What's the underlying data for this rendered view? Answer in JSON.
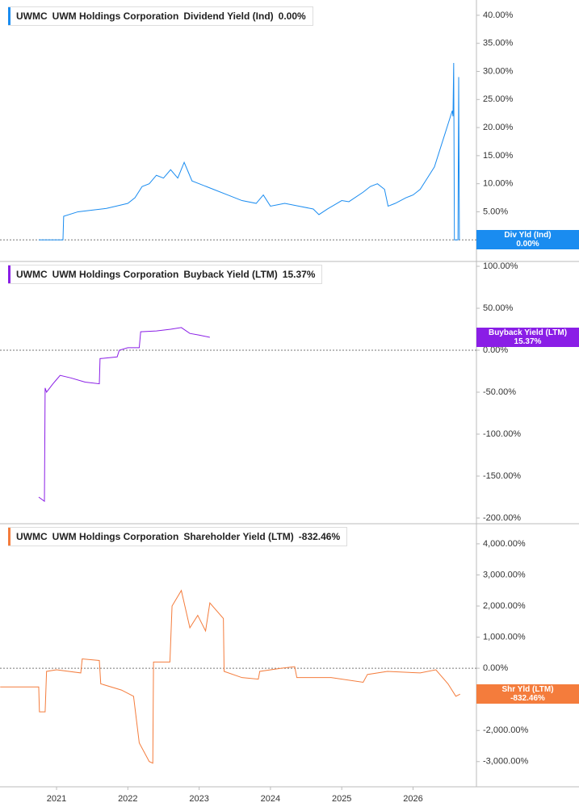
{
  "chart_data": [
    {
      "type": "line",
      "ticker": "UWMC",
      "company": "UWM Holdings Corporation",
      "tag_label": "Div Yld (Ind)",
      "last_value_label": "0.00%",
      "xlim": [
        2020.207,
        2026.889
      ],
      "ylim": [
        -3.7,
        42
      ],
      "yticks": [
        {
          "value": 0,
          "label": "0.00%"
        },
        {
          "value": 5,
          "label": "5.00%"
        },
        {
          "value": 10,
          "label": "10.00%"
        },
        {
          "value": 15,
          "label": "15.00%"
        },
        {
          "value": 20,
          "label": "20.00%"
        },
        {
          "value": 25,
          "label": "25.00%"
        },
        {
          "value": 30,
          "label": "30.00%"
        },
        {
          "value": 35,
          "label": "35.00%"
        },
        {
          "value": 40,
          "label": "40.00%"
        }
      ],
      "x": [
        2020.75,
        2021.09,
        2021.1,
        2021.3,
        2021.5,
        2021.7,
        2021.9,
        2022.0,
        2022.1,
        2022.2,
        2022.3,
        2022.4,
        2022.5,
        2022.6,
        2022.7,
        2022.79,
        2022.85,
        2022.9,
        2023.0,
        2023.2,
        2023.4,
        2023.6,
        2023.8,
        2023.9,
        2024.0,
        2024.2,
        2024.4,
        2024.6,
        2024.68,
        2024.8,
        2025.0,
        2025.1,
        2025.3,
        2025.4,
        2025.5,
        2025.6,
        2025.65,
        2025.75,
        2025.9,
        2026.0,
        2026.1,
        2026.2,
        2026.3,
        2026.4,
        2026.45,
        2026.5,
        2026.55,
        2026.56,
        2026.57,
        2026.58,
        2026.63,
        2026.64,
        2026.65
      ],
      "series": [
        {
          "name": "Dividend Yield (Ind)",
          "color": "#1a8cf0",
          "values": [
            0,
            0,
            4.2,
            5,
            5.3,
            5.6,
            6.2,
            6.5,
            7.5,
            9.5,
            10,
            11.5,
            11,
            12.5,
            11,
            13.8,
            12,
            10.5,
            10,
            9,
            8,
            7,
            6.5,
            8,
            6,
            6.5,
            6,
            5.5,
            4.5,
            5.5,
            7,
            6.8,
            8.5,
            9.5,
            10,
            9,
            6,
            6.5,
            7.5,
            8,
            9,
            11,
            13,
            17,
            19,
            21,
            23,
            22,
            31.5,
            0,
            0,
            29,
            0
          ]
        }
      ]
    },
    {
      "type": "line",
      "ticker": "UWMC",
      "company": "UWM Holdings Corporation",
      "tag_label": "Buyback Yield (LTM)",
      "last_value_label": "15.37%",
      "xlim": [
        2020.207,
        2026.889
      ],
      "ylim": [
        -205.8,
        104.8
      ],
      "yticks": [
        {
          "value": -200,
          "label": "-200.00%"
        },
        {
          "value": -150,
          "label": "-150.00%"
        },
        {
          "value": -100,
          "label": "-100.00%"
        },
        {
          "value": -50,
          "label": "-50.00%"
        },
        {
          "value": 0,
          "label": "0.00%"
        },
        {
          "value": 50,
          "label": "50.00%"
        },
        {
          "value": 100,
          "label": "100.00%"
        }
      ],
      "x": [
        2020.75,
        2020.83,
        2020.84,
        2020.86,
        2020.95,
        2021.0,
        2021.05,
        2021.2,
        2021.4,
        2021.6,
        2021.61,
        2021.85,
        2021.88,
        2022.0,
        2022.16,
        2022.18,
        2022.4,
        2022.6,
        2022.75,
        2022.87,
        2023.0,
        2023.15
      ],
      "series": [
        {
          "name": "Buyback Yield (LTM)",
          "color": "#8a1ee6",
          "values": [
            -175,
            -180,
            -45,
            -50,
            -40,
            -35,
            -30,
            -33,
            -38,
            -40,
            -10,
            -8,
            0,
            3,
            3,
            22,
            23,
            25,
            27,
            20,
            18,
            15.37
          ]
        }
      ]
    },
    {
      "type": "line",
      "ticker": "UWMC",
      "company": "UWM Holdings Corporation",
      "tag_label": "Shr Yld (LTM)",
      "last_value_label": "-832.46%",
      "xlim": [
        2020.207,
        2026.889
      ],
      "ylim": [
        -3810,
        4620
      ],
      "xticks": [
        2021,
        2022,
        2023,
        2024,
        2025,
        2026
      ],
      "yticks": [
        {
          "value": -3000,
          "label": "-3,000.00%"
        },
        {
          "value": -2000,
          "label": "-2,000.00%"
        },
        {
          "value": -1000,
          "label": "-1,000.00%"
        },
        {
          "value": 0,
          "label": "0.00%"
        },
        {
          "value": 1000,
          "label": "1,000.00%"
        },
        {
          "value": 2000,
          "label": "2,000.00%"
        },
        {
          "value": 3000,
          "label": "3,000.00%"
        },
        {
          "value": 4000,
          "label": "4,000.00%"
        }
      ],
      "x": [
        2020.21,
        2020.75,
        2020.76,
        2020.84,
        2020.86,
        2021.0,
        2021.34,
        2021.36,
        2021.6,
        2021.62,
        2021.91,
        2022.08,
        2022.16,
        2022.3,
        2022.35,
        2022.36,
        2022.59,
        2022.62,
        2022.75,
        2022.87,
        2022.98,
        2023.09,
        2023.15,
        2023.34,
        2023.35,
        2023.6,
        2023.83,
        2023.85,
        2024.15,
        2024.34,
        2024.37,
        2024.85,
        2025.3,
        2025.36,
        2025.64,
        2026.1,
        2026.32,
        2026.49,
        2026.6,
        2026.66
      ],
      "series": [
        {
          "name": "Shareholder Yield (LTM)",
          "color": "#f47c3c",
          "values": [
            -600,
            -600,
            -1400,
            -1400,
            -100,
            -50,
            -150,
            300,
            250,
            -500,
            -700,
            -900,
            -2400,
            -3000,
            -3050,
            200,
            200,
            2000,
            2500,
            1300,
            1700,
            1200,
            2100,
            1600,
            -100,
            -300,
            -350,
            -100,
            0,
            50,
            -300,
            -300,
            -450,
            -200,
            -100,
            -150,
            -50,
            -500,
            -900,
            -832.46
          ]
        }
      ]
    }
  ]
}
